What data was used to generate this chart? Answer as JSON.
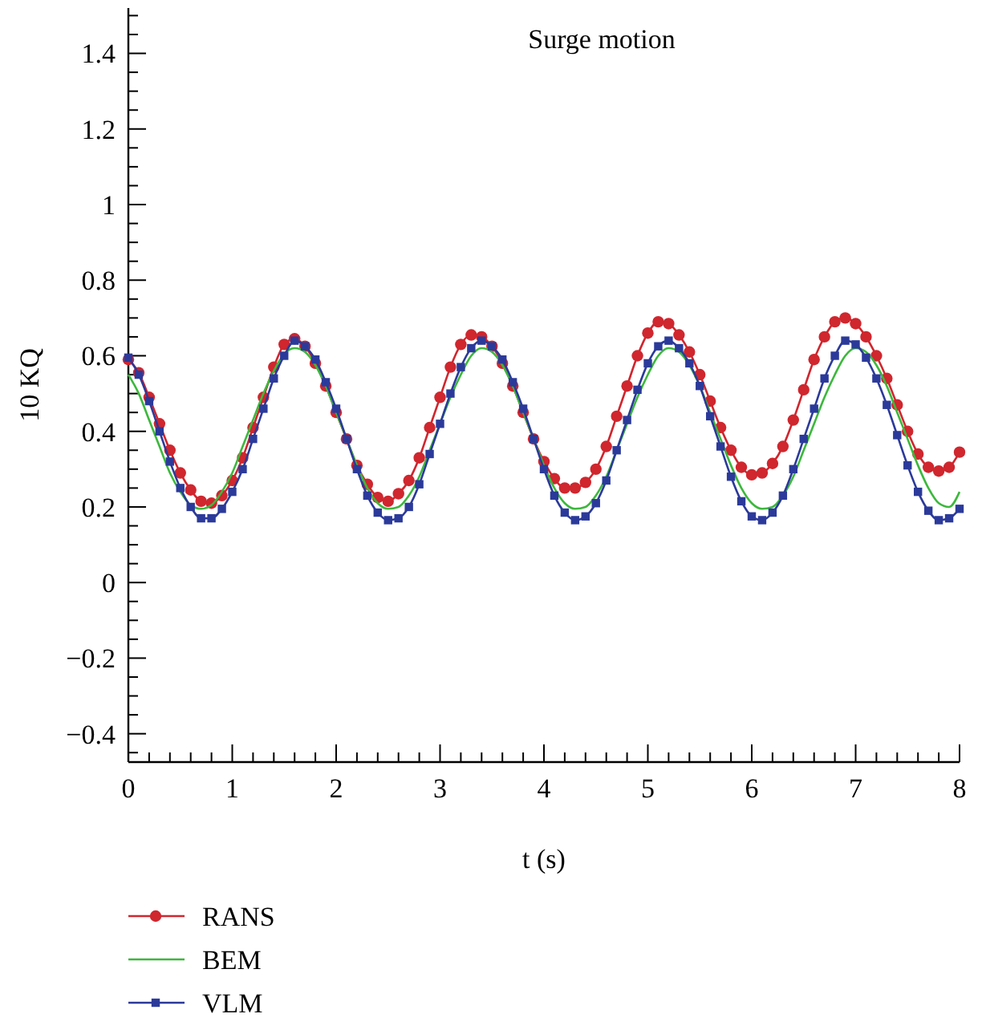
{
  "chart_data": {
    "type": "line",
    "title": "Surge motion",
    "xlabel": "t (s)",
    "ylabel": "10 KQ",
    "xlim": [
      0,
      8
    ],
    "ylim": [
      -0.475,
      1.52
    ],
    "xticks": [
      0,
      {
        "value": 0.2,
        "label": null
      },
      {
        "value": 0.4,
        "label": null
      },
      {
        "value": 0.6,
        "label": null
      },
      {
        "value": 0.8,
        "label": null
      },
      1,
      {
        "value": 1.2,
        "label": null
      },
      {
        "value": 1.4,
        "label": null
      },
      {
        "value": 1.6,
        "label": null
      },
      {
        "value": 1.8,
        "label": null
      },
      2,
      {
        "value": 2.2,
        "label": null
      },
      {
        "value": 2.4,
        "label": null
      },
      {
        "value": 2.6,
        "label": null
      },
      {
        "value": 2.8,
        "label": null
      },
      3,
      {
        "value": 3.2,
        "label": null
      },
      {
        "value": 3.4,
        "label": null
      },
      {
        "value": 3.6,
        "label": null
      },
      {
        "value": 3.8,
        "label": null
      },
      4,
      {
        "value": 4.2,
        "label": null
      },
      {
        "value": 4.4,
        "label": null
      },
      {
        "value": 4.6,
        "label": null
      },
      {
        "value": 4.8,
        "label": null
      },
      5,
      {
        "value": 5.2,
        "label": null
      },
      {
        "value": 5.4,
        "label": null
      },
      {
        "value": 5.6,
        "label": null
      },
      {
        "value": 5.8,
        "label": null
      },
      6,
      {
        "value": 6.2,
        "label": null
      },
      {
        "value": 6.4,
        "label": null
      },
      {
        "value": 6.6,
        "label": null
      },
      {
        "value": 6.8,
        "label": null
      },
      7,
      {
        "value": 7.2,
        "label": null
      },
      {
        "value": 7.4,
        "label": null
      },
      {
        "value": 7.6,
        "label": null
      },
      {
        "value": 7.8,
        "label": null
      },
      8
    ],
    "yticks": [
      {
        "value": -0.45,
        "label": null
      },
      {
        "value": -0.4,
        "label": "−0.4"
      },
      {
        "value": -0.35,
        "label": null
      },
      {
        "value": -0.3,
        "label": null
      },
      {
        "value": -0.25,
        "label": null
      },
      {
        "value": -0.2,
        "label": "−0.2"
      },
      {
        "value": -0.15,
        "label": null
      },
      {
        "value": -0.1,
        "label": null
      },
      {
        "value": -0.05,
        "label": null
      },
      0,
      {
        "value": 0.05,
        "label": null
      },
      {
        "value": 0.1,
        "label": null
      },
      {
        "value": 0.15,
        "label": null
      },
      0.2,
      {
        "value": 0.25,
        "label": null
      },
      {
        "value": 0.3,
        "label": null
      },
      {
        "value": 0.35,
        "label": null
      },
      0.4,
      {
        "value": 0.45,
        "label": null
      },
      {
        "value": 0.5,
        "label": null
      },
      {
        "value": 0.55,
        "label": null
      },
      0.6,
      {
        "value": 0.65,
        "label": null
      },
      {
        "value": 0.7,
        "label": null
      },
      {
        "value": 0.75,
        "label": null
      },
      0.8,
      {
        "value": 0.85,
        "label": null
      },
      {
        "value": 0.9,
        "label": null
      },
      {
        "value": 0.95,
        "label": null
      },
      1,
      {
        "value": 1.05,
        "label": null
      },
      {
        "value": 1.1,
        "label": null
      },
      {
        "value": 1.15,
        "label": null
      },
      1.2,
      {
        "value": 1.25,
        "label": null
      },
      {
        "value": 1.3,
        "label": null
      },
      {
        "value": 1.35,
        "label": null
      },
      1.4,
      {
        "value": 1.45,
        "label": null
      },
      {
        "value": 1.5,
        "label": null
      }
    ],
    "x": [
      0,
      0.1,
      0.2,
      0.3,
      0.4,
      0.5,
      0.6,
      0.7,
      0.8,
      0.9,
      1,
      1.1,
      1.2,
      1.3,
      1.4,
      1.5,
      1.6,
      1.7,
      1.8,
      1.9,
      2,
      2.1,
      2.2,
      2.3,
      2.4,
      2.5,
      2.6,
      2.7,
      2.8,
      2.9,
      3,
      3.1,
      3.2,
      3.3,
      3.4,
      3.5,
      3.6,
      3.7,
      3.8,
      3.9,
      4,
      4.1,
      4.2,
      4.3,
      4.4,
      4.5,
      4.6,
      4.7,
      4.8,
      4.9,
      5,
      5.1,
      5.2,
      5.3,
      5.4,
      5.5,
      5.6,
      5.7,
      5.8,
      5.9,
      6,
      6.1,
      6.2,
      6.3,
      6.4,
      6.5,
      6.6,
      6.7,
      6.8,
      6.9,
      7,
      7.1,
      7.2,
      7.3,
      7.4,
      7.5,
      7.6,
      7.7,
      7.8,
      7.9,
      8
    ],
    "legend": "bottom",
    "grid": false,
    "series": [
      {
        "name": "RANS",
        "color": "#d0262e",
        "marker": "circle",
        "values": [
          0.59,
          0.555,
          0.49,
          0.42,
          0.35,
          0.29,
          0.245,
          0.215,
          0.21,
          0.23,
          0.27,
          0.33,
          0.41,
          0.49,
          0.57,
          0.63,
          0.645,
          0.625,
          0.58,
          0.52,
          0.45,
          0.38,
          0.31,
          0.26,
          0.225,
          0.215,
          0.235,
          0.27,
          0.33,
          0.41,
          0.49,
          0.57,
          0.63,
          0.655,
          0.65,
          0.625,
          0.58,
          0.52,
          0.45,
          0.38,
          0.32,
          0.275,
          0.25,
          0.25,
          0.265,
          0.3,
          0.36,
          0.44,
          0.52,
          0.6,
          0.66,
          0.69,
          0.685,
          0.655,
          0.61,
          0.55,
          0.48,
          0.41,
          0.35,
          0.305,
          0.285,
          0.29,
          0.315,
          0.36,
          0.43,
          0.51,
          0.59,
          0.65,
          0.69,
          0.7,
          0.685,
          0.65,
          0.6,
          0.54,
          0.47,
          0.4,
          0.34,
          0.305,
          0.295,
          0.305,
          0.345
        ]
      },
      {
        "name": "BEM",
        "color": "#3cb83c",
        "marker": "none",
        "values": [
          0.55,
          0.5,
          0.43,
          0.36,
          0.29,
          0.24,
          0.205,
          0.195,
          0.205,
          0.24,
          0.29,
          0.36,
          0.43,
          0.5,
          0.56,
          0.605,
          0.62,
          0.61,
          0.575,
          0.52,
          0.45,
          0.38,
          0.31,
          0.25,
          0.21,
          0.195,
          0.2,
          0.23,
          0.28,
          0.35,
          0.42,
          0.49,
          0.55,
          0.6,
          0.62,
          0.61,
          0.575,
          0.52,
          0.45,
          0.38,
          0.31,
          0.25,
          0.21,
          0.195,
          0.2,
          0.23,
          0.28,
          0.35,
          0.42,
          0.49,
          0.55,
          0.6,
          0.62,
          0.61,
          0.575,
          0.52,
          0.45,
          0.38,
          0.31,
          0.25,
          0.21,
          0.195,
          0.2,
          0.23,
          0.28,
          0.35,
          0.42,
          0.49,
          0.55,
          0.6,
          0.62,
          0.61,
          0.575,
          0.52,
          0.45,
          0.38,
          0.31,
          0.25,
          0.21,
          0.2,
          0.24
        ]
      },
      {
        "name": "VLM",
        "color": "#2b3a9a",
        "marker": "square",
        "values": [
          0.595,
          0.55,
          0.48,
          0.4,
          0.32,
          0.25,
          0.2,
          0.17,
          0.17,
          0.195,
          0.24,
          0.3,
          0.38,
          0.46,
          0.54,
          0.6,
          0.64,
          0.625,
          0.59,
          0.53,
          0.46,
          0.38,
          0.3,
          0.23,
          0.185,
          0.165,
          0.17,
          0.2,
          0.26,
          0.34,
          0.42,
          0.5,
          0.57,
          0.62,
          0.64,
          0.625,
          0.59,
          0.53,
          0.46,
          0.38,
          0.3,
          0.23,
          0.185,
          0.165,
          0.175,
          0.21,
          0.27,
          0.35,
          0.43,
          0.51,
          0.58,
          0.625,
          0.64,
          0.62,
          0.58,
          0.52,
          0.44,
          0.36,
          0.28,
          0.215,
          0.175,
          0.165,
          0.185,
          0.23,
          0.3,
          0.38,
          0.46,
          0.54,
          0.6,
          0.64,
          0.63,
          0.595,
          0.54,
          0.47,
          0.39,
          0.31,
          0.24,
          0.19,
          0.165,
          0.17,
          0.195
        ]
      }
    ]
  }
}
